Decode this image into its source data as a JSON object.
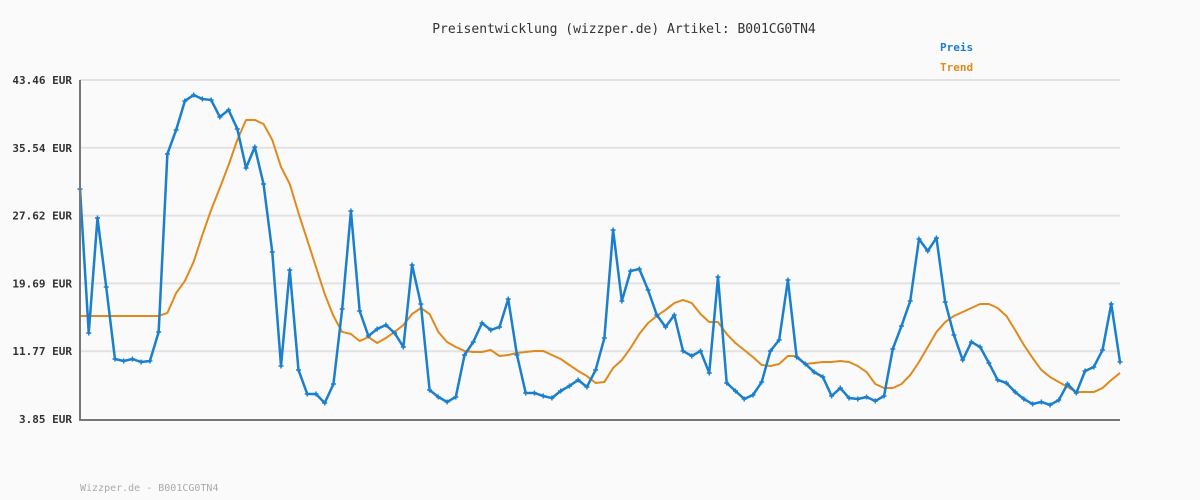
{
  "chart_data": {
    "type": "line",
    "title": "Preisentwicklung (wizzper.de) Artikel: B001CG0TN4",
    "xlabel": "",
    "ylabel": "",
    "ylim": [
      3.85,
      43.46
    ],
    "y_ticks": [
      "3.85 EUR",
      "11.77 EUR",
      "19.69 EUR",
      "27.62 EUR",
      "35.54 EUR",
      "43.46 EUR"
    ],
    "y_tick_values": [
      3.85,
      11.77,
      19.69,
      27.62,
      35.54,
      43.46
    ],
    "grid": true,
    "legend_placement": "top-right",
    "series": [
      {
        "name": "Preis",
        "color": "#1a7fcc",
        "markers": true,
        "values": [
          30.73,
          13.9,
          27.34,
          19.27,
          10.86,
          10.63,
          10.86,
          10.51,
          10.63,
          14.02,
          34.82,
          37.62,
          41.01,
          41.71,
          41.24,
          41.13,
          39.14,
          39.96,
          37.74,
          33.18,
          35.63,
          31.31,
          23.36,
          10.04,
          21.26,
          9.58,
          6.77,
          6.77,
          5.72,
          7.94,
          16.7,
          28.15,
          16.47,
          13.55,
          14.37,
          14.83,
          13.9,
          12.26,
          21.84,
          17.29,
          7.24,
          6.42,
          5.84,
          6.42,
          11.33,
          12.85,
          15.07,
          14.25,
          14.6,
          17.87,
          11.33,
          6.89,
          6.89,
          6.54,
          6.3,
          7.12,
          7.71,
          8.41,
          7.59,
          9.58,
          13.31,
          25.93,
          17.64,
          21.14,
          21.38,
          18.92,
          16.0,
          14.6,
          16.0,
          11.8,
          11.21,
          11.8,
          9.23,
          20.44,
          8.06,
          7.12,
          6.19,
          6.65,
          8.17,
          11.8,
          13.08,
          20.09,
          11.09,
          10.28,
          9.34,
          8.76,
          6.54,
          7.47,
          6.3,
          6.19,
          6.42,
          5.95,
          6.54,
          12.03,
          14.72,
          17.64,
          24.88,
          23.48,
          25.0,
          17.52,
          13.67,
          10.74,
          12.85,
          12.26,
          10.39,
          8.41,
          8.06,
          7.0,
          6.19,
          5.6,
          5.84,
          5.49,
          6.07,
          7.94,
          6.89,
          9.46,
          9.93,
          11.91,
          17.29,
          10.51
        ]
      },
      {
        "name": "Trend",
        "color": "#e08a1e",
        "markers": false,
        "values": [
          15.89,
          15.89,
          15.89,
          15.89,
          15.89,
          15.89,
          15.89,
          15.89,
          15.89,
          15.89,
          16.24,
          18.57,
          19.98,
          22.2,
          25.35,
          28.27,
          30.84,
          33.53,
          36.45,
          38.79,
          38.79,
          38.32,
          36.45,
          33.3,
          31.31,
          27.92,
          24.77,
          21.61,
          18.46,
          15.89,
          14.02,
          13.78,
          12.96,
          13.43,
          12.73,
          13.31,
          14.02,
          14.83,
          16.12,
          16.82,
          16.12,
          14.02,
          12.85,
          12.26,
          11.8,
          11.68,
          11.68,
          11.91,
          11.21,
          11.33,
          11.56,
          11.68,
          11.8,
          11.8,
          11.33,
          10.86,
          10.16,
          9.46,
          8.87,
          8.06,
          8.17,
          9.81,
          10.74,
          12.15,
          13.78,
          15.07,
          15.89,
          16.59,
          17.4,
          17.76,
          17.4,
          16.12,
          15.18,
          15.18,
          13.78,
          12.73,
          11.91,
          11.09,
          10.16,
          10.04,
          10.28,
          11.21,
          11.21,
          10.28,
          10.39,
          10.51,
          10.51,
          10.63,
          10.51,
          10.04,
          9.34,
          7.94,
          7.47,
          7.47,
          7.94,
          8.99,
          10.51,
          12.26,
          14.02,
          15.18,
          15.89,
          16.35,
          16.82,
          17.29,
          17.29,
          16.82,
          15.89,
          14.25,
          12.5,
          10.98,
          9.58,
          8.76,
          8.17,
          7.59,
          7.0,
          7.0,
          7.0,
          7.47,
          8.41,
          9.23
        ]
      }
    ],
    "footer": "Wizzper.de - B001CG0TN4"
  }
}
